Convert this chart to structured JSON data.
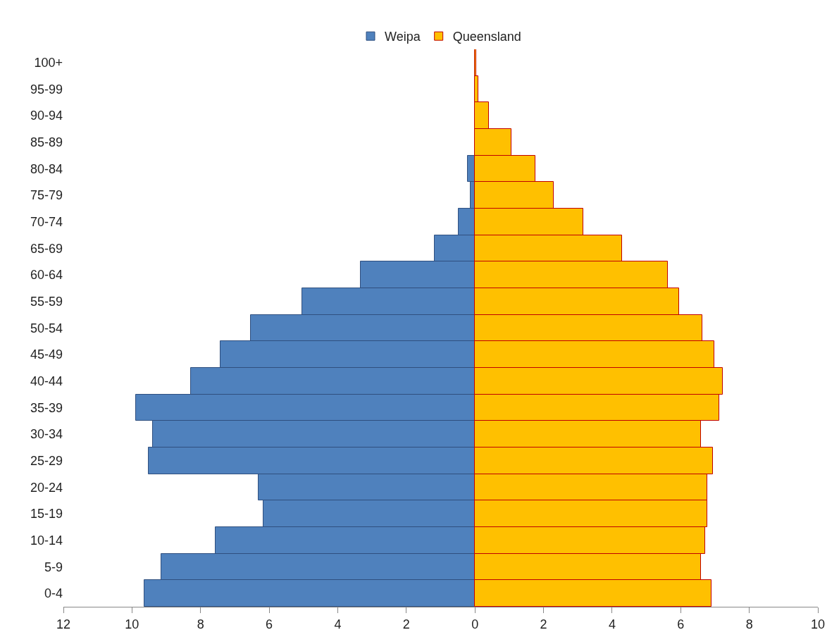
{
  "chart_data": {
    "type": "bar",
    "orientation": "horizontal",
    "legend": "top",
    "grid": false,
    "stacked": true,
    "categories": [
      "100+",
      "95-99",
      "90-94",
      "85-89",
      "80-84",
      "75-79",
      "70-74",
      "65-69",
      "60-64",
      "55-59",
      "50-54",
      "45-49",
      "40-44",
      "35-39",
      "30-34",
      "25-29",
      "20-24",
      "15-19",
      "10-14",
      "5-9",
      "0-4"
    ],
    "series": [
      {
        "name": "Weipa",
        "color": "#4f81bd",
        "values": [
          null,
          null,
          null,
          null,
          -0.21,
          -0.12,
          -0.47,
          -1.17,
          -3.33,
          -5.04,
          -6.54,
          -7.41,
          -8.29,
          -9.88,
          -9.4,
          -9.51,
          -6.3,
          -6.17,
          -7.57,
          -9.14,
          -9.63
        ]
      },
      {
        "name": "Queensland",
        "color": "#ffc000",
        "values": [
          0.03,
          0.1,
          0.41,
          1.07,
          1.77,
          2.3,
          3.15,
          4.28,
          5.62,
          5.95,
          6.63,
          6.98,
          7.22,
          7.12,
          6.6,
          6.93,
          6.77,
          6.77,
          6.71,
          6.6,
          6.89
        ]
      }
    ],
    "xlim": [
      -12,
      10
    ],
    "xticks": [
      {
        "value": -12,
        "label": "12"
      },
      {
        "value": -10,
        "label": "10"
      },
      {
        "value": -8,
        "label": "8"
      },
      {
        "value": -6,
        "label": "6"
      },
      {
        "value": -4,
        "label": "4"
      },
      {
        "value": -2,
        "label": "2"
      },
      0,
      2,
      4,
      6,
      8,
      10
    ]
  }
}
